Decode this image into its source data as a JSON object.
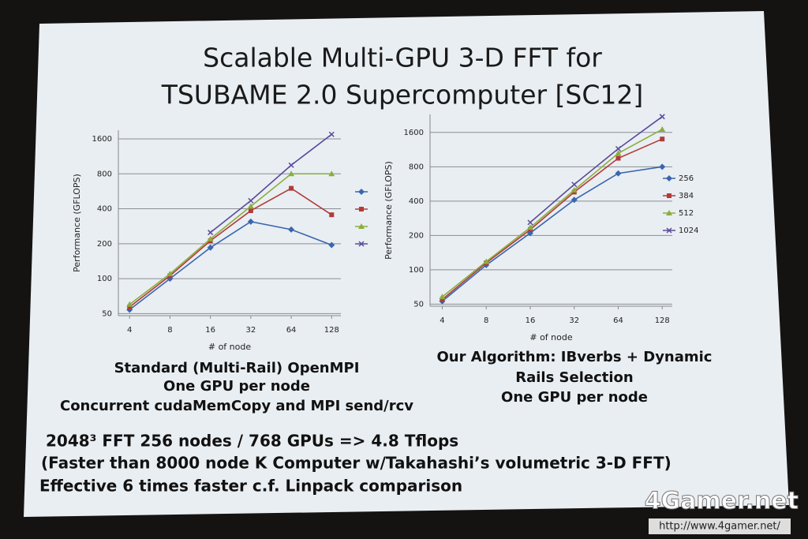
{
  "slide": {
    "title": [
      "Scalable Multi-GPU 3-D FFT for",
      "TSUBAME 2.0 Supercomputer [SC12]"
    ],
    "captions": [
      [
        "Standard (Multi-Rail) OpenMPI",
        "One GPU per node",
        "Concurrent cudaMemCopy and MPI send/rcv"
      ],
      [
        "Our Algorithm: IBverbs + Dynamic",
        "Rails Selection",
        "One GPU per node"
      ]
    ],
    "notes": [
      "2048³ FFT 256 nodes / 768 GPUs => 4.8 Tflops",
      "(Faster than 8000 node K Computer w/Takahashi’s volumetric 3-D FFT)",
      "Effective 6 times faster c.f. Linpack comparison"
    ],
    "watermark": {
      "logo": "4Gamer.net",
      "url": "http://www.4gamer.net/"
    }
  },
  "chart_data": [
    {
      "type": "line",
      "x_label": "# of node",
      "y_label": "Performance (GFLOPS)",
      "xlog": true,
      "ylog": true,
      "grid": true,
      "legend": "right",
      "x": [
        4,
        8,
        16,
        32,
        64,
        128
      ],
      "xlim": [
        3.3,
        150
      ],
      "xticks": [
        4,
        8,
        16,
        32,
        64,
        128
      ],
      "ylim": [
        48,
        1900
      ],
      "yticks": [
        50,
        100,
        200,
        400,
        800,
        1600
      ],
      "series": [
        {
          "color": "#3a66b0",
          "marker": "diamond",
          "values": [
            54,
            100,
            185,
            310,
            265,
            195
          ]
        },
        {
          "color": "#b23a3a",
          "marker": "square",
          "values": [
            57,
            106,
            212,
            385,
            600,
            355
          ]
        },
        {
          "color": "#8aae3e",
          "marker": "triangle",
          "values": [
            60,
            110,
            220,
            420,
            800,
            800
          ]
        },
        {
          "color": "#5a4a9c",
          "marker": "x",
          "values": [
            null,
            null,
            250,
            470,
            950,
            1750
          ]
        }
      ]
    },
    {
      "type": "line",
      "x_label": "# of node",
      "y_label": "Performance (GFLOPS)",
      "xlog": true,
      "ylog": true,
      "grid": true,
      "legend": "right",
      "x": [
        4,
        8,
        16,
        32,
        64,
        128
      ],
      "xlim": [
        3.3,
        150
      ],
      "xticks": [
        4,
        8,
        16,
        32,
        64,
        128
      ],
      "ylim": [
        48,
        2300
      ],
      "yticks": [
        50,
        100,
        200,
        400,
        800,
        1600
      ],
      "series": [
        {
          "name": "256",
          "color": "#3a66b0",
          "marker": "diamond",
          "values": [
            53,
            110,
            210,
            410,
            700,
            800
          ]
        },
        {
          "name": "384",
          "color": "#b23a3a",
          "marker": "square",
          "values": [
            55,
            115,
            225,
            480,
            950,
            1400
          ]
        },
        {
          "name": "512",
          "color": "#8aae3e",
          "marker": "triangle",
          "values": [
            58,
            118,
            235,
            500,
            1050,
            1700
          ]
        },
        {
          "name": "1024",
          "color": "#5a4a9c",
          "marker": "x",
          "values": [
            null,
            null,
            260,
            560,
            1150,
            2200
          ]
        }
      ]
    }
  ]
}
